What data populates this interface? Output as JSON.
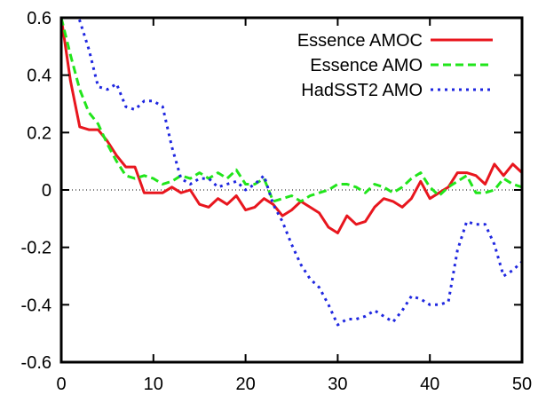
{
  "chart_data": {
    "type": "line",
    "title": "",
    "xlabel": "",
    "ylabel": "",
    "xlim": [
      0,
      50
    ],
    "ylim": [
      -0.6,
      0.6
    ],
    "xticks": [
      0,
      10,
      20,
      30,
      40,
      50
    ],
    "xtick_labels": [
      "0",
      "10",
      "20",
      "30",
      "40",
      "50"
    ],
    "yticks": [
      -0.6,
      -0.4,
      -0.2,
      0,
      0.2,
      0.4,
      0.6
    ],
    "ytick_labels": [
      "-0.6",
      "-0.4",
      "-0.2",
      "0",
      "0.2",
      "0.4",
      "0.6"
    ],
    "zero_line": true,
    "grid": false,
    "legend_position": "top-right",
    "series": [
      {
        "name": "Essence AMOC",
        "color": "#e8161e",
        "style": "solid",
        "x": [
          0,
          1,
          2,
          3,
          4,
          5,
          6,
          7,
          8,
          9,
          10,
          11,
          12,
          13,
          14,
          15,
          16,
          17,
          18,
          19,
          20,
          21,
          22,
          23,
          24,
          25,
          26,
          27,
          28,
          29,
          30,
          31,
          32,
          33,
          34,
          35,
          36,
          37,
          38,
          39,
          40,
          41,
          42,
          43,
          44,
          45,
          46,
          47,
          48,
          49,
          50
        ],
        "y": [
          0.6,
          0.38,
          0.22,
          0.21,
          0.21,
          0.17,
          0.12,
          0.08,
          0.08,
          -0.01,
          -0.01,
          -0.01,
          0.01,
          -0.01,
          0.0,
          -0.05,
          -0.06,
          -0.03,
          -0.05,
          -0.02,
          -0.07,
          -0.06,
          -0.03,
          -0.05,
          -0.09,
          -0.07,
          -0.04,
          -0.06,
          -0.08,
          -0.13,
          -0.15,
          -0.09,
          -0.12,
          -0.11,
          -0.06,
          -0.03,
          -0.04,
          -0.06,
          -0.03,
          0.03,
          -0.03,
          -0.01,
          0.01,
          0.06,
          0.06,
          0.05,
          0.02,
          0.09,
          0.05,
          0.09,
          0.06
        ]
      },
      {
        "name": "Essence AMO",
        "color": "#21e51b",
        "style": "dashed",
        "x": [
          0,
          1,
          2,
          3,
          4,
          5,
          6,
          7,
          8,
          9,
          10,
          11,
          12,
          13,
          14,
          15,
          16,
          17,
          18,
          19,
          20,
          21,
          22,
          23,
          24,
          25,
          26,
          27,
          28,
          29,
          30,
          31,
          32,
          33,
          34,
          35,
          36,
          37,
          38,
          39,
          40,
          41,
          42,
          43,
          44,
          45,
          46,
          47,
          48,
          49,
          50
        ],
        "y": [
          0.6,
          0.47,
          0.35,
          0.27,
          0.23,
          0.16,
          0.1,
          0.05,
          0.04,
          0.05,
          0.04,
          0.02,
          0.03,
          0.05,
          0.04,
          0.06,
          0.04,
          0.06,
          0.04,
          0.07,
          0.02,
          0.02,
          0.04,
          -0.04,
          -0.03,
          -0.02,
          -0.04,
          -0.02,
          -0.01,
          0.0,
          0.02,
          0.02,
          0.01,
          -0.01,
          0.02,
          0.01,
          -0.01,
          0.01,
          0.04,
          0.06,
          0.01,
          -0.02,
          0.01,
          0.03,
          0.05,
          -0.01,
          -0.01,
          0.0,
          0.04,
          0.02,
          0.01
        ]
      },
      {
        "name": "HadSST2 AMO",
        "color": "#1f27e0",
        "style": "dotted",
        "x": [
          0,
          1,
          2,
          3,
          4,
          5,
          6,
          7,
          8,
          9,
          10,
          11,
          12,
          13,
          14,
          15,
          16,
          17,
          18,
          19,
          20,
          21,
          22,
          23,
          24,
          25,
          26,
          27,
          28,
          29,
          30,
          31,
          32,
          33,
          34,
          35,
          36,
          37,
          38,
          39,
          40,
          41,
          42,
          43,
          44,
          45,
          46,
          47,
          48,
          49,
          50
        ],
        "y": [
          0.7,
          0.65,
          0.59,
          0.49,
          0.36,
          0.35,
          0.37,
          0.29,
          0.28,
          0.31,
          0.31,
          0.29,
          0.15,
          0.04,
          0.02,
          0.04,
          0.04,
          0.01,
          0.02,
          0.03,
          0.0,
          0.02,
          0.05,
          -0.05,
          -0.11,
          -0.19,
          -0.26,
          -0.31,
          -0.34,
          -0.4,
          -0.47,
          -0.45,
          -0.45,
          -0.44,
          -0.42,
          -0.44,
          -0.46,
          -0.42,
          -0.37,
          -0.38,
          -0.4,
          -0.4,
          -0.39,
          -0.21,
          -0.11,
          -0.12,
          -0.12,
          -0.19,
          -0.3,
          -0.28,
          -0.25
        ]
      }
    ]
  }
}
